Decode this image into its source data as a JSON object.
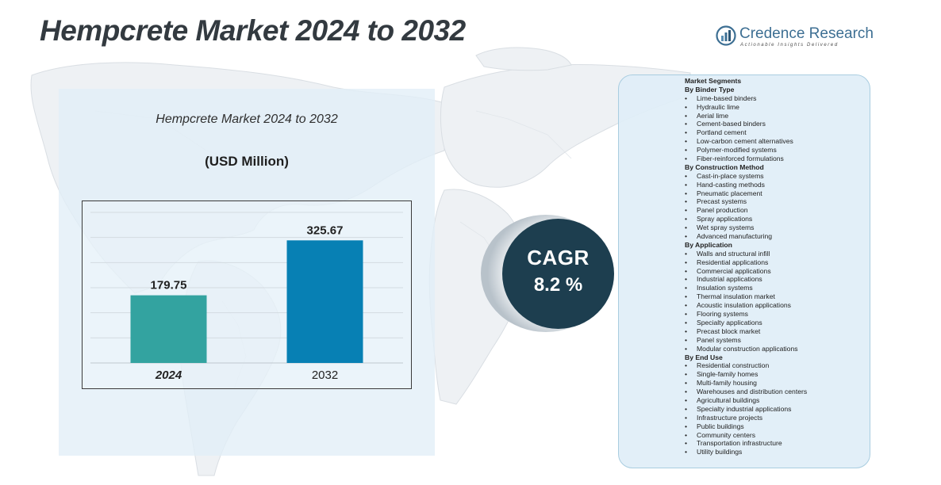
{
  "page": {
    "title": "Hempcrete Market 2024 to 2032"
  },
  "brand": {
    "name": "Credence Research",
    "tagline": "Actionable Insights Delivered",
    "color": "#3d6f93"
  },
  "chart_data": {
    "type": "bar",
    "title": "Hempcrete Market 2024 to 2032",
    "unit_label": "(USD Million)",
    "categories": [
      "2024",
      "2032"
    ],
    "values": [
      179.75,
      325.67
    ],
    "value_labels": [
      "179.75",
      "325.67"
    ],
    "colors": [
      "#33a3a0",
      "#0780b4"
    ],
    "ylim": [
      0,
      400
    ],
    "grid": true,
    "xlabel": "",
    "ylabel": ""
  },
  "cagr": {
    "label": "CAGR",
    "value": "8.2 %",
    "color": "#1d3e4f"
  },
  "segments": {
    "heading": "Market Segments",
    "groups": [
      {
        "title": "By Binder Type",
        "items": [
          "Lime-based binders",
          "Hydraulic lime",
          "Aerial lime",
          "Cement-based binders",
          "Portland cement",
          "Low-carbon cement alternatives",
          "Polymer-modified systems",
          "Fiber-reinforced formulations"
        ]
      },
      {
        "title": "By Construction Method",
        "items": [
          "Cast-in-place systems",
          "Hand-casting methods",
          "Pneumatic placement",
          "Precast systems",
          "Panel production",
          "Spray applications",
          "Wet spray systems",
          "Advanced manufacturing"
        ]
      },
      {
        "title": "By Application",
        "items": [
          "Walls and structural infill",
          "Residential applications",
          "Commercial applications",
          "Industrial applications",
          "Insulation systems",
          "Thermal insulation market",
          "Acoustic insulation applications",
          "Flooring systems",
          "Specialty applications",
          "Precast block market",
          "Panel systems",
          "Modular construction applications"
        ]
      },
      {
        "title": "By End Use",
        "items": [
          "Residential construction",
          "Single-family homes",
          "Multi-family housing",
          "Warehouses and distribution centers",
          "Agricultural buildings",
          "Specialty industrial applications",
          "Infrastructure projects",
          "Public buildings",
          "Community centers",
          "Transportation infrastructure",
          "Utility buildings"
        ]
      }
    ]
  }
}
